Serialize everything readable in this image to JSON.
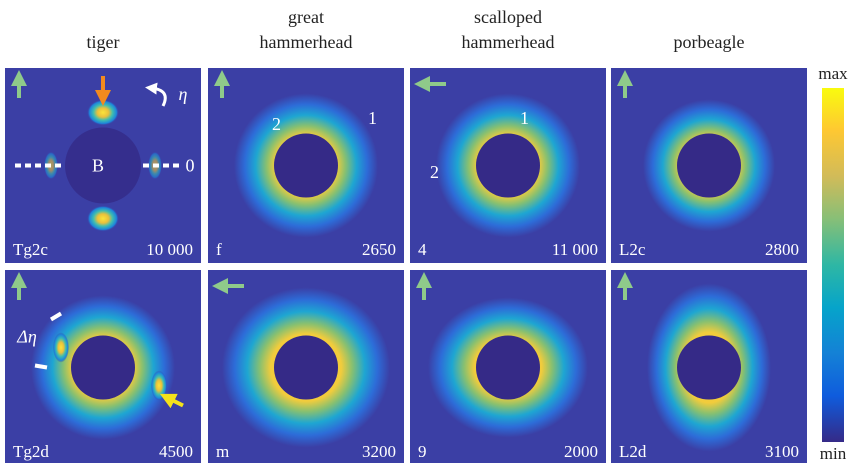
{
  "columns": [
    [
      "tiger"
    ],
    [
      "great",
      "hammerhead"
    ],
    [
      "scalloped",
      "hammerhead"
    ],
    [
      "porbeagle"
    ]
  ],
  "panels": [
    {
      "sample": "Tg2c",
      "intensity": "10 000"
    },
    {
      "sample": "f",
      "intensity": "2650"
    },
    {
      "sample": "4",
      "intensity": "11 000"
    },
    {
      "sample": "L2c",
      "intensity": "2800"
    },
    {
      "sample": "Tg2d",
      "intensity": "4500"
    },
    {
      "sample": "m",
      "intensity": "3200"
    },
    {
      "sample": "9",
      "intensity": "2000"
    },
    {
      "sample": "L2d",
      "intensity": "3100"
    }
  ],
  "annotations": {
    "beamstop": "B",
    "zero": "0",
    "eta": "η",
    "delta_eta": "Δη",
    "great_peaks": [
      "2",
      "1"
    ],
    "scalloped_peaks": [
      "1",
      "2"
    ]
  },
  "colorbar": {
    "max": "max",
    "min": "min"
  }
}
